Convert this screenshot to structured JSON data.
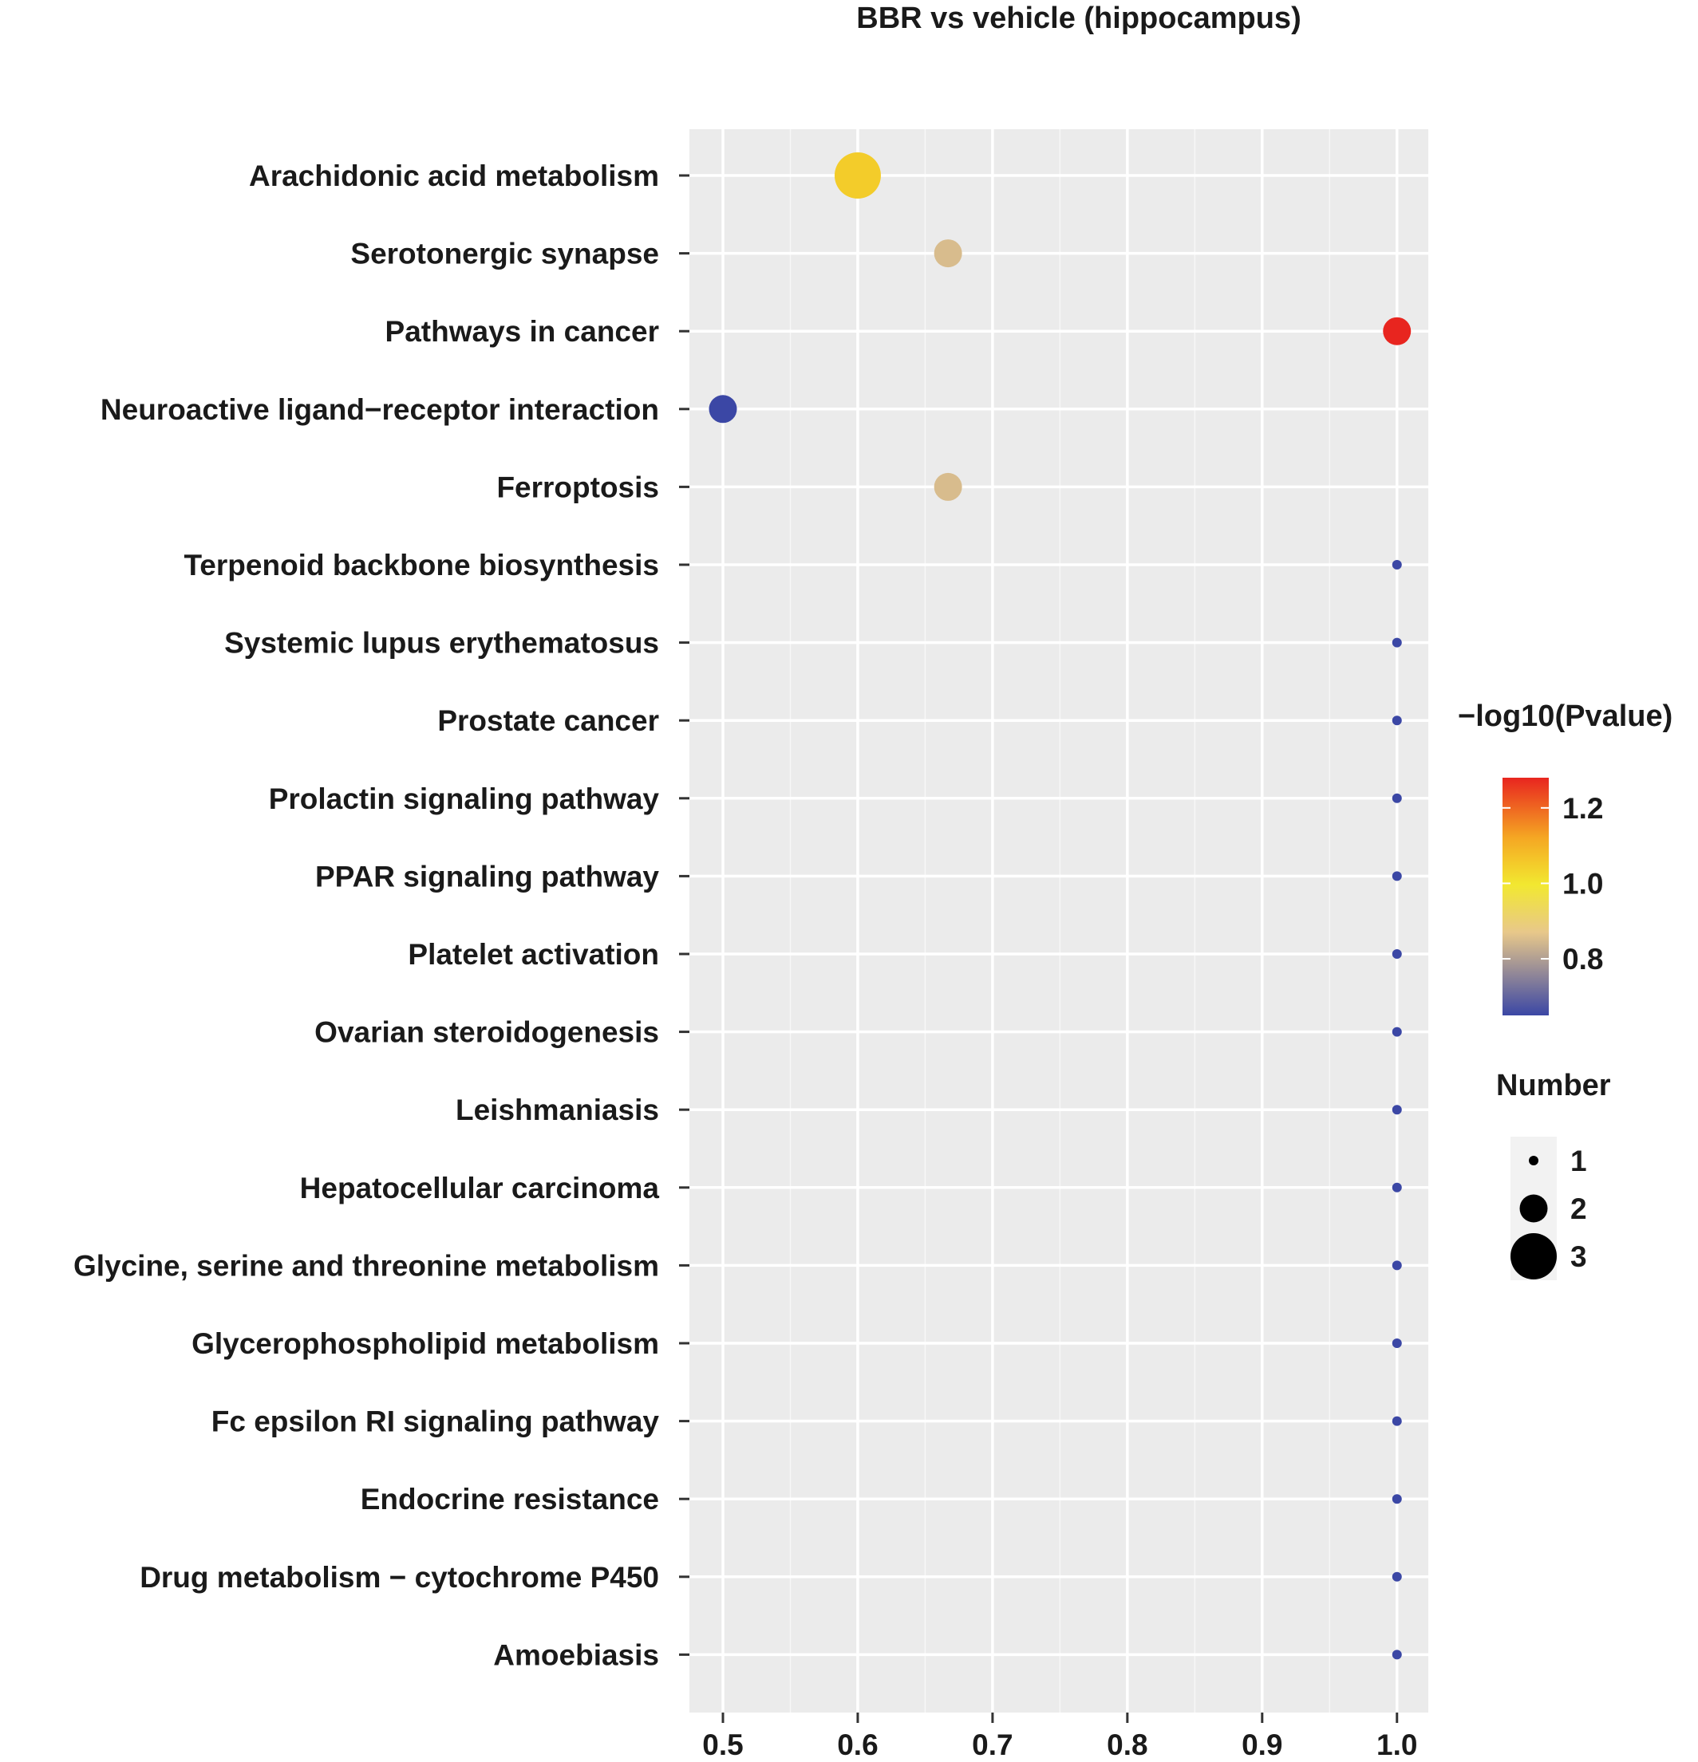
{
  "chart_data": {
    "type": "scatter",
    "title": "BBR vs vehicle (hippocampus)",
    "xlabel": "",
    "ylabel": "",
    "xlim": [
      0.475,
      1.025
    ],
    "x_ticks": [
      "0.5",
      "0.6",
      "0.7",
      "0.8",
      "0.9",
      "1.0"
    ],
    "grid": true,
    "categories": [
      "Arachidonic acid metabolism",
      "Serotonergic synapse",
      "Pathways in cancer",
      "Neuroactive ligand−receptor interaction",
      "Ferroptosis",
      "Terpenoid backbone biosynthesis",
      "Systemic lupus erythematosus",
      "Prostate cancer",
      "Prolactin signaling pathway",
      "PPAR signaling pathway",
      "Platelet activation",
      "Ovarian steroidogenesis",
      "Leishmaniasis",
      "Hepatocellular carcinoma",
      "Glycine, serine and threonine metabolism",
      "Glycerophospholipid metabolism",
      "Fc epsilon RI signaling pathway",
      "Endocrine resistance",
      "Drug metabolism − cytochrome P450",
      "Amoebiasis"
    ],
    "x": [
      0.6,
      0.667,
      1.0,
      0.5,
      0.667,
      1.0,
      1.0,
      1.0,
      1.0,
      1.0,
      1.0,
      1.0,
      1.0,
      1.0,
      1.0,
      1.0,
      1.0,
      1.0,
      1.0,
      1.0
    ],
    "number": [
      3,
      2,
      2,
      2,
      2,
      1,
      1,
      1,
      1,
      1,
      1,
      1,
      1,
      1,
      1,
      1,
      1,
      1,
      1,
      1
    ],
    "neg_log10_pvalue": [
      1.05,
      0.85,
      1.28,
      0.65,
      0.85,
      0.65,
      0.65,
      0.65,
      0.65,
      0.65,
      0.65,
      0.65,
      0.65,
      0.65,
      0.65,
      0.65,
      0.65,
      0.65,
      0.65,
      0.65
    ],
    "color_legend": {
      "title": "−log10(Pvalue)",
      "ticks": [
        "1.2",
        "1.0",
        "0.8"
      ],
      "range": [
        0.65,
        1.28
      ],
      "colors": [
        "#3b47a5",
        "#e8c88a",
        "#f2e830",
        "#f5a623",
        "#e8251f"
      ]
    },
    "size_legend": {
      "title": "Number",
      "entries": [
        "1",
        "2",
        "3"
      ]
    },
    "legend_placement": "right"
  }
}
